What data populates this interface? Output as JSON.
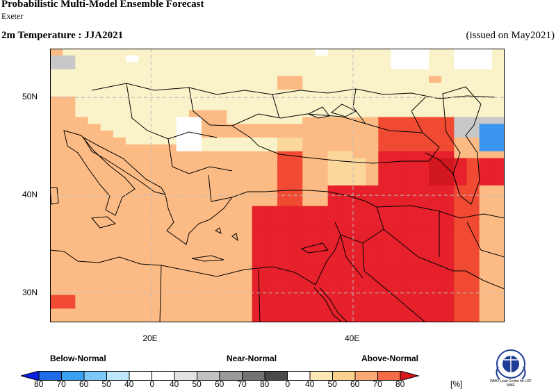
{
  "header": {
    "title": "Probabilistic Multi-Model Ensemble Forecast",
    "subtitle": "Exeter",
    "variable": "2m Temperature : JJA2021",
    "issued": "(issued on May2021)"
  },
  "map": {
    "lat_labels": [
      "50N",
      "40N",
      "30N"
    ],
    "lon_labels": [
      "20E",
      "40E"
    ],
    "extent": {
      "lon_min": 10,
      "lon_max": 55,
      "lat_min": 27,
      "lat_max": 55
    },
    "category_colors": {
      "W": "#ffffff",
      "G": "#c8c8c8",
      "Y": "#faf2c8",
      "C": "#fcd79c",
      "O": "#fcbb84",
      "R": "#fa8f5e",
      "S": "#f04b32",
      "D": "#e6212b",
      "K": "#d2161e",
      "B": "#3c96f0"
    },
    "grid_rows": [
      "OYYYYYYYYYYYYYYYYYYYYWYYYYYWWWYYWWWY",
      "GGYYYYWYYYYYYYYYYYYYYYYYYYYWWWYYWWWY",
      "GGYYYYYYYYYYYYYYYYYYYYYYYYYWWWYYWWWY",
      "YYYYYYYYYYYYYYYYYYYYYYYYYYYYYYYYYYYY",
      "YYYYYYYYYYYYYYYYYYOOYYYYYYYYYYOYYYYY",
      "YYYYYYYYYYYYYYYYYYOOYYYYYYYYYYYYYYYY",
      "YYYYYYYYYYYYYYYYYYYYYYYYYYYYYYYYYYYY",
      "OOYYYYYYYYYYYYYYYYYYYYYYYYYYYYYYYYYY",
      "OOYYYYYYYYYYYYYYYYYYYYYYYYYYYYYYYYYY",
      "OOYYYYYYYYYOOOYYYYYYYYYYYYYYYYYYYYYY",
      "OOOYYYYYYYWWOOYYYYYYOOOOOOSSSSSSGGGG",
      "OOOOYYYYYYWWOOOOOOOOOOOOOOSSSSSSGGBB",
      "OOOOOYYYYYWWOOOOOOOOOOOOOOSSSSSSGGBB",
      "OOOOOOYYYYWWYYYYYYCCOOOOOOSSSSSSOOBB",
      "OOOOOOOOOOWWYYYYYYCCOOOOOOSSSSSSOOBB",
      "OOOOOOOOOOOOOOOOOOSSOOCCOODDDDDDOOOO",
      "OOOOOOOOOOOOOOOOOOSSOOCCCODDDDKKDSDD",
      "OOOOOOOOOOOOOOOOOOSSOOCCCODDDDKKDSDD",
      "OOOOOOOOOOOOOOOOOOSSOOCCCODDDDKKDSDD",
      "OOOOOOOOOOOOOOOOOOSSOOCCCODDDDKKDSDD",
      "OOOOOOOOOOOOOOOOOOSSOODDDDDDDDDDSSOO",
      "OOOOOOOOOOOOOOOOOOSSOODDDDDDDDDDSSOO",
      "OOOOOOOOOOOOOOOOOOSSOODDDDDDDDDDSSOO",
      "OOOOOOOOOOOOOOOODDDDDDDDDDDDDDDDSSOO",
      "OOOOOOOOOOOOOOOODDDDDDDDDDDDDDDDSSOO",
      "OOOOOOOOOOOOOOOODDDDDDDDDDDDDDDDSSOO",
      "OOOOOOOOOOOOOOOODDDDDDDDDDDDDDDDSSOO",
      "OOOOOOOOOOOOOOOODDDDDDDDDDDDDDDDSSOO",
      "OOOOOOOOOOOOOOOODDDDDDDDDDDDDDDDSSOO",
      "OOOOOOOOOOOOOOOODDDDDDDDDDDDDDDDSSOO",
      "OOOOOOOOOOOOOOOODDDDDDDDDDDDDDDDSSOO",
      "OOOOOOOOOOOOOOOODDDDDDDDDDDDDDDDSSOO",
      "OOOOOOOOOOOOOOOODDDDDDDDDDDDDDDDSSOO",
      "OOOOOOOOOOOOOOOODDDDDDDDDDDDDDDDSSOO",
      "OOOOOOOOOOOOOOOODDDDDDDDDDDDDDDDSSOO",
      "OOOOOOOOOOOOOOOODDDDDDDDDDDDDDDDSSOO",
      "SSOOOOOOOOOOOOOODDDDDDDDDDDDDDDDSSOO",
      "SSOOOOOOOOOOOOOODDDDDDDDDDDDDDDDSSOO",
      "OOOOOOOOOOOOOOOODDDDDDDDDDDDDDDDSSOO",
      "OOOOOOOOOOOOOOOODDDDDDDDDDDDDDDDSSOO"
    ]
  },
  "legend": {
    "below_label": "Below-Normal",
    "near_label": "Near-Normal",
    "above_label": "Above-Normal",
    "unit": "[%]",
    "boxes": [
      "#0a1fe0",
      "#1e6be8",
      "#3aa0f2",
      "#7ec8f7",
      "#bfe7fb",
      "#ffffff",
      "#ffffff",
      "#e2e2e2",
      "#c2c2c2",
      "#9a9a9a",
      "#727272",
      "#4a4a4a",
      "#ffffff",
      "#fbe8b5",
      "#fcd08e",
      "#fcaa75",
      "#f46b48",
      "#d7191c"
    ],
    "tick_labels": [
      "80",
      "70",
      "60",
      "50",
      "40",
      "0",
      "40",
      "50",
      "60",
      "70",
      "80",
      "0",
      "40",
      "50",
      "60",
      "70",
      "80"
    ]
  },
  "logo": {
    "caption": "WMO Lead Centre for LRF MME"
  }
}
